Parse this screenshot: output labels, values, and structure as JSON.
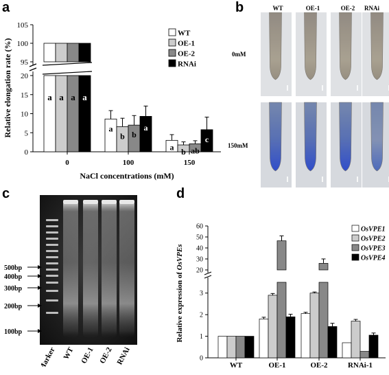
{
  "panels": {
    "a": {
      "letter": "a",
      "chart_data": {
        "type": "bar",
        "ylabel": "Relative elongation rate (%)",
        "xlabel": "NaCl concentrations (mM)",
        "categories": [
          "0",
          "100",
          "150"
        ],
        "yticks_low": [
          "0",
          "5",
          "10",
          "15",
          "20"
        ],
        "yticks_high": [
          "95",
          "100",
          "105"
        ],
        "broken_axis": true,
        "legend_placement": "top-right",
        "series": [
          {
            "name": "WT",
            "color": "#ffffff",
            "values": [
              100,
              8.6,
              3.0
            ],
            "errors": [
              0,
              2.2,
              1.5
            ],
            "letters": [
              "a",
              "a",
              "a"
            ]
          },
          {
            "name": "OE-1",
            "color": "#cccccc",
            "values": [
              100,
              6.6,
              1.8
            ],
            "errors": [
              0,
              2.2,
              0.8
            ],
            "letters": [
              "a",
              "b",
              "b"
            ]
          },
          {
            "name": "OE-2",
            "color": "#888888",
            "values": [
              100,
              7.0,
              2.1
            ],
            "errors": [
              0,
              2.5,
              0.8
            ],
            "letters": [
              "a",
              "b",
              "ab"
            ]
          },
          {
            "name": "RNAi",
            "color": "#000000",
            "values": [
              100,
              9.3,
              5.8
            ],
            "errors": [
              0,
              2.7,
              3.3
            ],
            "letters": [
              "a",
              "a",
              "c"
            ]
          }
        ]
      }
    },
    "b": {
      "letter": "b",
      "columns": [
        "WT",
        "OE-1",
        "OE-2",
        "RNAi"
      ],
      "rows": [
        "0mM",
        "150mM"
      ],
      "stain_levels": [
        [
          0,
          0,
          0,
          0
        ],
        [
          0.9,
          1.0,
          1.0,
          0.5
        ]
      ]
    },
    "c": {
      "letter": "c",
      "ladder_labels": [
        "500bp",
        "400bp",
        "300bp",
        "200bp",
        "100bp"
      ],
      "lanes": [
        "Marker",
        "WT",
        "OE-1",
        "OE-2",
        "RNAi"
      ]
    },
    "d": {
      "letter": "d",
      "chart_data": {
        "type": "bar",
        "ylabel_prefix": "Relative expression of ",
        "ylabel_italic": "OsVPEs",
        "categories": [
          "WT",
          "OE-1",
          "OE-2",
          "RNAi-1"
        ],
        "yticks_low": [
          "0",
          "1",
          "2",
          "3"
        ],
        "yticks_high": [
          "20",
          "30",
          "40",
          "50",
          "60"
        ],
        "broken_axis": true,
        "legend_placement": "top-right",
        "series": [
          {
            "name": "OsVPE1",
            "color": "#ffffff",
            "values": [
              1.0,
              1.8,
              2.05,
              0.7
            ],
            "errors": [
              0,
              0.08,
              0.06,
              0
            ]
          },
          {
            "name": "OsVPE2",
            "color": "#cccccc",
            "values": [
              1.0,
              2.9,
              3.0,
              1.7
            ],
            "errors": [
              0,
              0.08,
              0.05,
              0.08
            ]
          },
          {
            "name": "OsVPE3",
            "color": "#888888",
            "values": [
              1.0,
              46.5,
              26.0,
              0.3
            ],
            "errors": [
              0,
              4.5,
              4.0,
              0
            ]
          },
          {
            "name": "OsVPE4",
            "color": "#000000",
            "values": [
              1.0,
              1.9,
              1.45,
              1.05
            ],
            "errors": [
              0,
              0.12,
              0.15,
              0.1
            ]
          }
        ]
      }
    }
  }
}
